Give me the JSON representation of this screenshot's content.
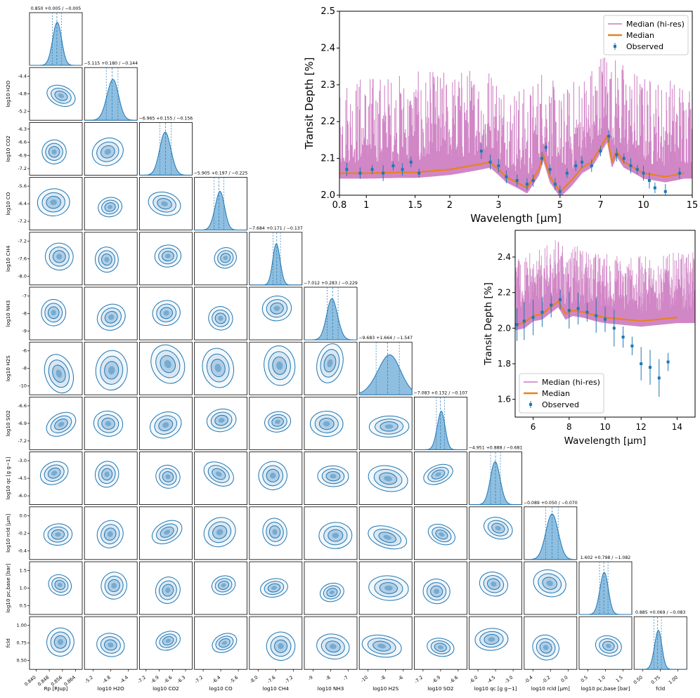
{
  "colors": {
    "contour": "#1f77b4",
    "hist_fill": "#8fbfe0",
    "hires": "#cc79c0",
    "median": "#e8821e",
    "observed": "#1f77b4"
  },
  "chart_data": [
    {
      "type": "line",
      "title": "",
      "xlabel": "Wavelength [μm]",
      "ylabel": "Transit Depth [%]",
      "xscale": "log",
      "xlim": [
        0.8,
        15
      ],
      "ylim": [
        2.0,
        2.5
      ],
      "xticks": [
        "0.8",
        "1",
        "1.5",
        "2",
        "3",
        "5",
        "7",
        "10",
        "15"
      ],
      "xtick_values": [
        0.8,
        1,
        1.5,
        2,
        3,
        5,
        7,
        10,
        15
      ],
      "yticks": [
        "2.0",
        "2.1",
        "2.2",
        "2.3",
        "2.4",
        "2.5"
      ],
      "ytick_values": [
        2.0,
        2.1,
        2.2,
        2.3,
        2.4,
        2.5
      ],
      "legend": {
        "position": "top-right",
        "entries": [
          "Median (hi-res)",
          "Median",
          "Observed"
        ]
      },
      "series": [
        {
          "name": "Median",
          "x": [
            0.8,
            1.0,
            1.3,
            1.5,
            2.0,
            2.6,
            2.8,
            3.2,
            3.8,
            4.2,
            4.35,
            4.6,
            5.0,
            5.5,
            6.0,
            6.5,
            7.0,
            7.4,
            7.7,
            8.0,
            8.5,
            9.0,
            10.0,
            12.0,
            14.0
          ],
          "y": [
            2.06,
            2.06,
            2.062,
            2.062,
            2.07,
            2.085,
            2.09,
            2.05,
            2.02,
            2.07,
            2.11,
            2.05,
            2.01,
            2.04,
            2.075,
            2.09,
            2.13,
            2.16,
            2.09,
            2.12,
            2.09,
            2.08,
            2.06,
            2.05,
            2.06
          ]
        },
        {
          "name": "Observed",
          "x": [
            0.85,
            0.95,
            1.05,
            1.15,
            1.25,
            1.35,
            1.45,
            1.55,
            2.6,
            2.8,
            3.0,
            3.2,
            3.5,
            3.8,
            4.0,
            4.3,
            4.45,
            4.6,
            4.8,
            5.0,
            5.3,
            5.7,
            6.0,
            6.5,
            7.0,
            7.5,
            8.0,
            8.5,
            9.0,
            9.5,
            10.0,
            10.5,
            11.0,
            12.0,
            13.5
          ],
          "y": [
            2.07,
            2.06,
            2.07,
            2.06,
            2.08,
            2.07,
            2.09,
            2.06,
            2.12,
            2.09,
            2.08,
            2.05,
            2.04,
            2.03,
            2.04,
            2.1,
            2.13,
            2.07,
            2.03,
            2.01,
            2.06,
            2.08,
            2.09,
            2.08,
            2.12,
            2.16,
            2.11,
            2.1,
            2.08,
            2.07,
            2.06,
            2.04,
            2.02,
            2.01,
            2.06
          ]
        }
      ]
    },
    {
      "type": "line",
      "title": "",
      "xlabel": "Wavelength [μm]",
      "ylabel": "Transit Depth [%]",
      "xlim": [
        5,
        15
      ],
      "ylim": [
        1.5,
        2.55
      ],
      "xticks": [
        "6",
        "8",
        "10",
        "12",
        "14"
      ],
      "xtick_values": [
        6,
        8,
        10,
        12,
        14
      ],
      "yticks": [
        "1.6",
        "1.8",
        "2.0",
        "2.2",
        "2.4"
      ],
      "ytick_values": [
        1.6,
        1.8,
        2.0,
        2.2,
        2.4
      ],
      "legend": {
        "position": "bottom-left",
        "entries": [
          "Median (hi-res)",
          "Median",
          "Observed"
        ]
      },
      "series": [
        {
          "name": "Median",
          "x": [
            5.0,
            5.5,
            6.0,
            6.5,
            7.0,
            7.4,
            7.8,
            8.2,
            8.8,
            9.5,
            10.0,
            11.0,
            12.0,
            13.0,
            14.0
          ],
          "y": [
            2.02,
            2.03,
            2.07,
            2.08,
            2.12,
            2.15,
            2.08,
            2.1,
            2.09,
            2.07,
            2.06,
            2.05,
            2.04,
            2.05,
            2.06
          ]
        },
        {
          "name": "Observed",
          "x": [
            5.1,
            5.5,
            6.0,
            6.5,
            7.0,
            7.5,
            8.0,
            8.5,
            9.0,
            9.5,
            10.0,
            10.5,
            11.0,
            11.5,
            12.0,
            12.5,
            13.0,
            13.5
          ],
          "y": [
            2.02,
            2.04,
            2.06,
            2.09,
            2.13,
            2.16,
            2.1,
            2.11,
            2.09,
            2.07,
            2.05,
            2.0,
            1.95,
            1.9,
            1.8,
            1.78,
            1.72,
            1.81
          ]
        }
      ]
    },
    {
      "type": "heatmap",
      "title": "",
      "parameters": [
        {
          "label": "Rp [RJup]",
          "ylabel": "",
          "value": "0.850",
          "plus": "+0.005",
          "minus": "−0.005",
          "ticks": [
            "0.840",
            "0.848",
            "0.856",
            "0.864"
          ]
        },
        {
          "label": "log10 H2O",
          "ylabel": "log10 H2O",
          "value": "−5.115",
          "plus": "+0.180",
          "minus": "−0.144",
          "ticks": [
            "-5.2",
            "-4.8",
            "-4.4"
          ]
        },
        {
          "label": "log10 CO2",
          "ylabel": "log10 CO2",
          "value": "−6.965",
          "plus": "+0.155",
          "minus": "−0.156",
          "ticks": [
            "-7.2",
            "-6.9",
            "-6.6",
            "-6.3"
          ]
        },
        {
          "label": "log10 CO",
          "ylabel": "log10 CO",
          "value": "−5.905",
          "plus": "+0.197",
          "minus": "−0.225",
          "ticks": [
            "-7.2",
            "-6.4",
            "-5.6"
          ]
        },
        {
          "label": "log10 CH4",
          "ylabel": "log10 CH4",
          "value": "−7.684",
          "plus": "+0.171",
          "minus": "−0.137",
          "ticks": [
            "-8.0",
            "-7.6",
            "-7.2"
          ]
        },
        {
          "label": "log10 NH3",
          "ylabel": "log10 NH3",
          "value": "−7.012",
          "plus": "+0.283",
          "minus": "−0.229",
          "ticks": [
            "-9",
            "-8",
            "-7"
          ]
        },
        {
          "label": "log10 H2S",
          "ylabel": "log10 H2S",
          "value": "−9.683",
          "plus": "+1.664",
          "minus": "−1.547",
          "ticks": [
            "-10",
            "-8",
            "-6"
          ]
        },
        {
          "label": "log10 SO2",
          "ylabel": "log10 SO2",
          "value": "−7.083",
          "plus": "+0.132",
          "minus": "−0.107",
          "ticks": [
            "-7.2",
            "-6.9",
            "-6.6"
          ]
        },
        {
          "label": "log10 qc [g g−1]",
          "ylabel": "log10 qc [g g−1]",
          "value": "−4.951",
          "plus": "+0.888",
          "minus": "−0.681",
          "ticks": [
            "-6.0",
            "-4.5",
            "-3.0"
          ]
        },
        {
          "label": "log10 rcld [μm]",
          "ylabel": "log10 rcld [μm]",
          "value": "−0.089",
          "plus": "+0.050",
          "minus": "−0.070",
          "ticks": [
            "-0.4",
            "-0.2",
            "0.0"
          ]
        },
        {
          "label": "log10 pc,base [bar]",
          "ylabel": "log10 pc,base [bar]",
          "value": "1.602",
          "plus": "+0.798",
          "minus": "−1.082",
          "ticks": [
            "0.5",
            "1.0",
            "1.5"
          ]
        },
        {
          "label": "fcld",
          "ylabel": "fcld",
          "value": "0.885",
          "plus": "+0.069",
          "minus": "−0.083",
          "ticks": [
            "0.50",
            "0.75",
            "1.00"
          ]
        }
      ]
    }
  ]
}
